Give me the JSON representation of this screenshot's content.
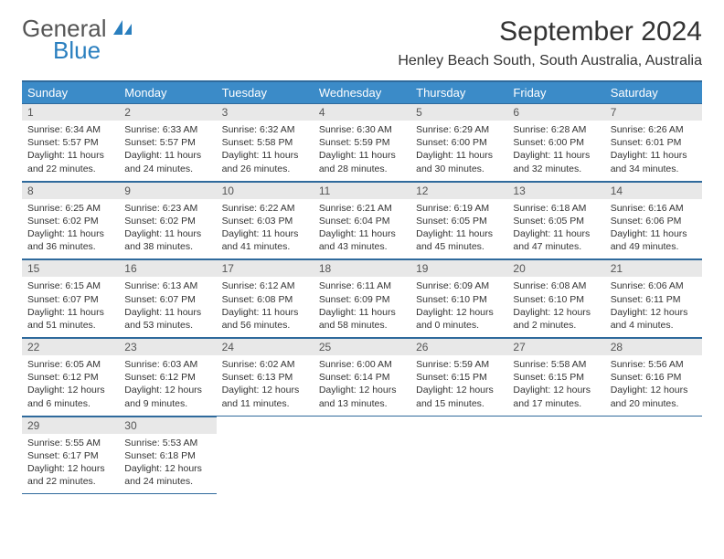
{
  "brand": {
    "part1": "General",
    "part2": "Blue"
  },
  "title": "September 2024",
  "location": "Henley Beach South, South Australia, Australia",
  "colors": {
    "header_bg": "#3b8bc8",
    "border": "#2f6a9c",
    "daynum_bg": "#e8e8e8",
    "brand_blue": "#2a7fbf"
  },
  "weekdays": [
    "Sunday",
    "Monday",
    "Tuesday",
    "Wednesday",
    "Thursday",
    "Friday",
    "Saturday"
  ],
  "weeks": [
    [
      {
        "n": "1",
        "sr": "Sunrise: 6:34 AM",
        "ss": "Sunset: 5:57 PM",
        "d1": "Daylight: 11 hours",
        "d2": "and 22 minutes."
      },
      {
        "n": "2",
        "sr": "Sunrise: 6:33 AM",
        "ss": "Sunset: 5:57 PM",
        "d1": "Daylight: 11 hours",
        "d2": "and 24 minutes."
      },
      {
        "n": "3",
        "sr": "Sunrise: 6:32 AM",
        "ss": "Sunset: 5:58 PM",
        "d1": "Daylight: 11 hours",
        "d2": "and 26 minutes."
      },
      {
        "n": "4",
        "sr": "Sunrise: 6:30 AM",
        "ss": "Sunset: 5:59 PM",
        "d1": "Daylight: 11 hours",
        "d2": "and 28 minutes."
      },
      {
        "n": "5",
        "sr": "Sunrise: 6:29 AM",
        "ss": "Sunset: 6:00 PM",
        "d1": "Daylight: 11 hours",
        "d2": "and 30 minutes."
      },
      {
        "n": "6",
        "sr": "Sunrise: 6:28 AM",
        "ss": "Sunset: 6:00 PM",
        "d1": "Daylight: 11 hours",
        "d2": "and 32 minutes."
      },
      {
        "n": "7",
        "sr": "Sunrise: 6:26 AM",
        "ss": "Sunset: 6:01 PM",
        "d1": "Daylight: 11 hours",
        "d2": "and 34 minutes."
      }
    ],
    [
      {
        "n": "8",
        "sr": "Sunrise: 6:25 AM",
        "ss": "Sunset: 6:02 PM",
        "d1": "Daylight: 11 hours",
        "d2": "and 36 minutes."
      },
      {
        "n": "9",
        "sr": "Sunrise: 6:23 AM",
        "ss": "Sunset: 6:02 PM",
        "d1": "Daylight: 11 hours",
        "d2": "and 38 minutes."
      },
      {
        "n": "10",
        "sr": "Sunrise: 6:22 AM",
        "ss": "Sunset: 6:03 PM",
        "d1": "Daylight: 11 hours",
        "d2": "and 41 minutes."
      },
      {
        "n": "11",
        "sr": "Sunrise: 6:21 AM",
        "ss": "Sunset: 6:04 PM",
        "d1": "Daylight: 11 hours",
        "d2": "and 43 minutes."
      },
      {
        "n": "12",
        "sr": "Sunrise: 6:19 AM",
        "ss": "Sunset: 6:05 PM",
        "d1": "Daylight: 11 hours",
        "d2": "and 45 minutes."
      },
      {
        "n": "13",
        "sr": "Sunrise: 6:18 AM",
        "ss": "Sunset: 6:05 PM",
        "d1": "Daylight: 11 hours",
        "d2": "and 47 minutes."
      },
      {
        "n": "14",
        "sr": "Sunrise: 6:16 AM",
        "ss": "Sunset: 6:06 PM",
        "d1": "Daylight: 11 hours",
        "d2": "and 49 minutes."
      }
    ],
    [
      {
        "n": "15",
        "sr": "Sunrise: 6:15 AM",
        "ss": "Sunset: 6:07 PM",
        "d1": "Daylight: 11 hours",
        "d2": "and 51 minutes."
      },
      {
        "n": "16",
        "sr": "Sunrise: 6:13 AM",
        "ss": "Sunset: 6:07 PM",
        "d1": "Daylight: 11 hours",
        "d2": "and 53 minutes."
      },
      {
        "n": "17",
        "sr": "Sunrise: 6:12 AM",
        "ss": "Sunset: 6:08 PM",
        "d1": "Daylight: 11 hours",
        "d2": "and 56 minutes."
      },
      {
        "n": "18",
        "sr": "Sunrise: 6:11 AM",
        "ss": "Sunset: 6:09 PM",
        "d1": "Daylight: 11 hours",
        "d2": "and 58 minutes."
      },
      {
        "n": "19",
        "sr": "Sunrise: 6:09 AM",
        "ss": "Sunset: 6:10 PM",
        "d1": "Daylight: 12 hours",
        "d2": "and 0 minutes."
      },
      {
        "n": "20",
        "sr": "Sunrise: 6:08 AM",
        "ss": "Sunset: 6:10 PM",
        "d1": "Daylight: 12 hours",
        "d2": "and 2 minutes."
      },
      {
        "n": "21",
        "sr": "Sunrise: 6:06 AM",
        "ss": "Sunset: 6:11 PM",
        "d1": "Daylight: 12 hours",
        "d2": "and 4 minutes."
      }
    ],
    [
      {
        "n": "22",
        "sr": "Sunrise: 6:05 AM",
        "ss": "Sunset: 6:12 PM",
        "d1": "Daylight: 12 hours",
        "d2": "and 6 minutes."
      },
      {
        "n": "23",
        "sr": "Sunrise: 6:03 AM",
        "ss": "Sunset: 6:12 PM",
        "d1": "Daylight: 12 hours",
        "d2": "and 9 minutes."
      },
      {
        "n": "24",
        "sr": "Sunrise: 6:02 AM",
        "ss": "Sunset: 6:13 PM",
        "d1": "Daylight: 12 hours",
        "d2": "and 11 minutes."
      },
      {
        "n": "25",
        "sr": "Sunrise: 6:00 AM",
        "ss": "Sunset: 6:14 PM",
        "d1": "Daylight: 12 hours",
        "d2": "and 13 minutes."
      },
      {
        "n": "26",
        "sr": "Sunrise: 5:59 AM",
        "ss": "Sunset: 6:15 PM",
        "d1": "Daylight: 12 hours",
        "d2": "and 15 minutes."
      },
      {
        "n": "27",
        "sr": "Sunrise: 5:58 AM",
        "ss": "Sunset: 6:15 PM",
        "d1": "Daylight: 12 hours",
        "d2": "and 17 minutes."
      },
      {
        "n": "28",
        "sr": "Sunrise: 5:56 AM",
        "ss": "Sunset: 6:16 PM",
        "d1": "Daylight: 12 hours",
        "d2": "and 20 minutes."
      }
    ],
    [
      {
        "n": "29",
        "sr": "Sunrise: 5:55 AM",
        "ss": "Sunset: 6:17 PM",
        "d1": "Daylight: 12 hours",
        "d2": "and 22 minutes."
      },
      {
        "n": "30",
        "sr": "Sunrise: 5:53 AM",
        "ss": "Sunset: 6:18 PM",
        "d1": "Daylight: 12 hours",
        "d2": "and 24 minutes."
      },
      null,
      null,
      null,
      null,
      null
    ]
  ]
}
